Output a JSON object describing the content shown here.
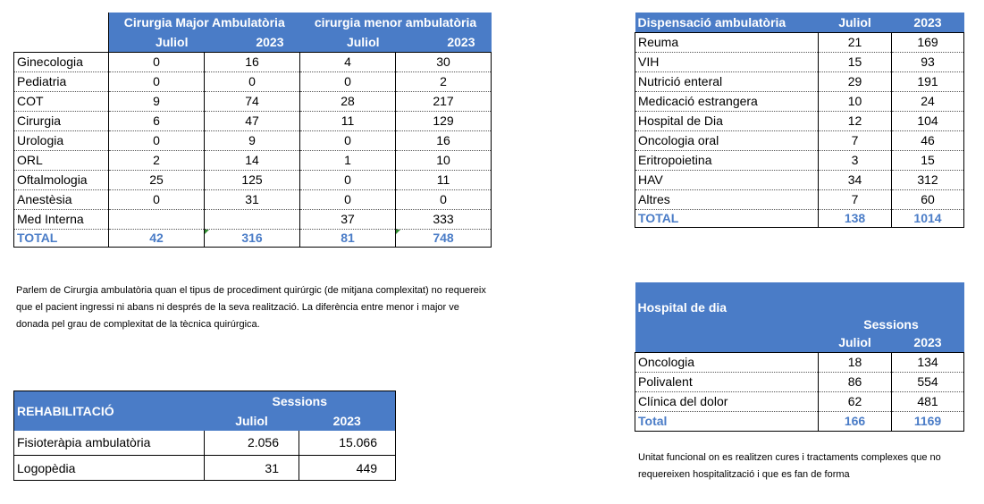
{
  "surgery": {
    "headers": {
      "major": "Cirurgia Major Ambulatòria",
      "minor": "cirurgia menor ambulatòria",
      "month": "Juliol",
      "year": "2023"
    },
    "rows": [
      {
        "name": "Ginecologia",
        "maj_m": "0",
        "maj_y": "16",
        "min_m": "4",
        "min_y": "30"
      },
      {
        "name": "Pediatria",
        "maj_m": "0",
        "maj_y": "0",
        "min_m": "0",
        "min_y": "2"
      },
      {
        "name": "COT",
        "maj_m": "9",
        "maj_y": "74",
        "min_m": "28",
        "min_y": "217"
      },
      {
        "name": "Cirurgia",
        "maj_m": "6",
        "maj_y": "47",
        "min_m": "11",
        "min_y": "129"
      },
      {
        "name": "Urologia",
        "maj_m": "0",
        "maj_y": "9",
        "min_m": "0",
        "min_y": "16"
      },
      {
        "name": "ORL",
        "maj_m": "2",
        "maj_y": "14",
        "min_m": "1",
        "min_y": "10"
      },
      {
        "name": "Oftalmologia",
        "maj_m": "25",
        "maj_y": "125",
        "min_m": "0",
        "min_y": "11"
      },
      {
        "name": "Anestèsia",
        "maj_m": "0",
        "maj_y": "31",
        "min_m": "0",
        "min_y": "0"
      },
      {
        "name": "Med Interna",
        "maj_m": "",
        "maj_y": "",
        "min_m": "37",
        "min_y": "333"
      }
    ],
    "total": {
      "name": "TOTAL",
      "maj_m": "42",
      "maj_y": "316",
      "min_m": "81",
      "min_y": "748"
    }
  },
  "dispensation": {
    "headers": {
      "title": "Dispensació ambulatòria",
      "month": "Juliol",
      "year": "2023"
    },
    "rows": [
      {
        "name": "Reuma",
        "m": "21",
        "y": "169"
      },
      {
        "name": "VIH",
        "m": "15",
        "y": "93"
      },
      {
        "name": "Nutrició enteral",
        "m": "29",
        "y": "191"
      },
      {
        "name": "Medicació estrangera",
        "m": "10",
        "y": "24"
      },
      {
        "name": "Hospital de Dia",
        "m": "12",
        "y": "104"
      },
      {
        "name": "Oncologia oral",
        "m": "7",
        "y": "46"
      },
      {
        "name": "Eritropoietina",
        "m": "3",
        "y": "15"
      },
      {
        "name": "HAV",
        "m": "34",
        "y": "312"
      },
      {
        "name": "Altres",
        "m": "7",
        "y": "60"
      }
    ],
    "total": {
      "name": "TOTAL",
      "m": "138",
      "y": "1014"
    }
  },
  "surgery_note": "Parlem de Cirurgia ambulatòria quan el tipus de procediment quirúrgic (de mitjana complexitat) no requereix que el pacient ingressi ni abans ni després de la seva realització. La diferència entre menor i major ve donada pel grau de complexitat de la tècnica quirúrgica.",
  "rehab": {
    "headers": {
      "title": "REHABILITACIÓ",
      "sessions": "Sessions",
      "month": "Juliol",
      "year": "2023"
    },
    "rows": [
      {
        "name": "Fisioteràpia ambulatòria",
        "m": "2.056",
        "y": "15.066"
      },
      {
        "name": "Logopèdia",
        "m": "31",
        "y": "449"
      }
    ]
  },
  "day_hospital": {
    "headers": {
      "title": "Hospital de dia",
      "sessions": "Sessions",
      "month": "Juliol",
      "year": "2023"
    },
    "rows": [
      {
        "name": "Oncologia",
        "m": "18",
        "y": "134"
      },
      {
        "name": "Polivalent",
        "m": "86",
        "y": "554"
      },
      {
        "name": "Clínica del dolor",
        "m": "62",
        "y": "481"
      }
    ],
    "total": {
      "name": "Total",
      "m": "166",
      "y": "1169"
    }
  },
  "day_hospital_note": "Unitat funcional on es realitzen cures i tractaments complexes que no requereixen hospitalització i que es fan de forma"
}
